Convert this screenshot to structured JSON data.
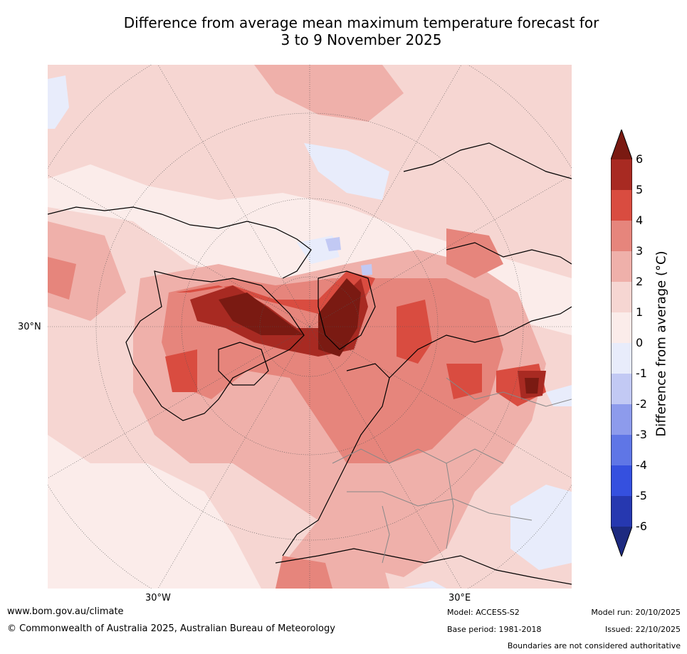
{
  "title": {
    "line1": "Difference from average mean maximum temperature forecast for",
    "line2": "3 to 9 November 2025"
  },
  "map": {
    "projection": "North polar stereographic",
    "lat_label": "30°N",
    "lon_labels": [
      "30°W",
      "30°E"
    ]
  },
  "colorbar": {
    "label": "Difference from average (°C)",
    "ticks": [
      "6",
      "5",
      "4",
      "3",
      "2",
      "1",
      "0",
      "-1",
      "-2",
      "-3",
      "-4",
      "-5",
      "-6"
    ],
    "colors": {
      "gt6": "#7a1a12",
      "5to6": "#a82a22",
      "4to5": "#d94c40",
      "3to4": "#e6857c",
      "2to3": "#efb0aa",
      "1to2": "#f6d6d2",
      "0to1": "#fbecea",
      "m1to0": "#e8ecfb",
      "m2tom1": "#c2c9f4",
      "m3tom2": "#8d9bec",
      "m4tom3": "#5f76e6",
      "m5tom4": "#3550df",
      "m6tom5": "#2638b0",
      "ltm6": "#1d2a80"
    }
  },
  "footer": {
    "website": "www.bom.gov.au/climate",
    "copyright": "© Commonwealth of Australia 2025, Australian Bureau of Meteorology",
    "model": "Model: ACCESS-S2",
    "base_period": "Base period: 1981-2018",
    "model_run": "Model run: 20/10/2025",
    "issued": "Issued: 22/10/2025",
    "disclaimer": "Boundaries are not considered authoritative"
  }
}
